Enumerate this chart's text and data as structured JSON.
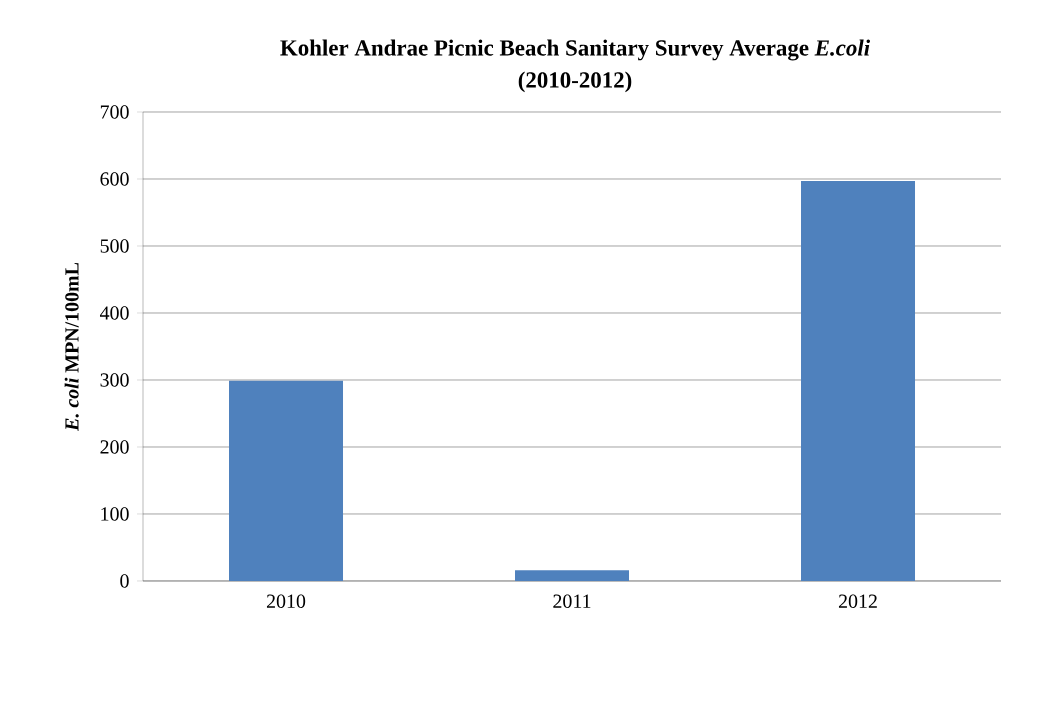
{
  "chart_data": {
    "type": "bar",
    "title": "Kohler Andrae Picnic Beach Sanitary Survey Average *E.coli*",
    "subtitle": "(2010-2012)",
    "ylabel": "*E. coli* MPN/100mL",
    "categories": [
      "2010",
      "2011",
      "2012"
    ],
    "values": [
      299,
      16,
      597
    ],
    "color": "#4f81bd",
    "ylim": [
      0,
      700
    ],
    "yticks": [
      0,
      100,
      200,
      300,
      400,
      500,
      600,
      700
    ],
    "grid": "y"
  }
}
